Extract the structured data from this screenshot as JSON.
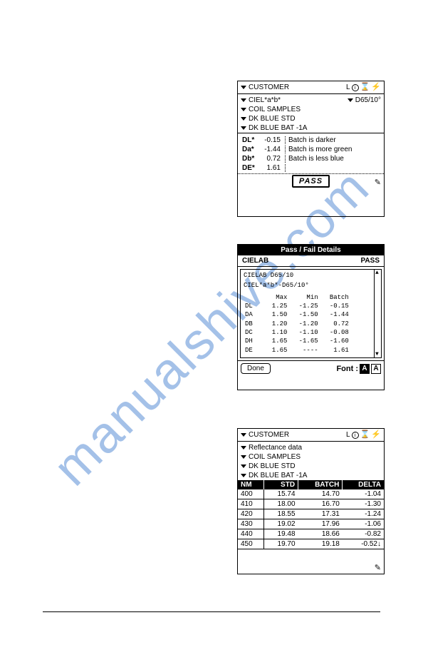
{
  "watermark": "manualshive.com",
  "panel1": {
    "title_label": "CUSTOMER",
    "status_L": "L",
    "status_info": "i",
    "illum_label": "D65/10°",
    "rows": [
      "CIEL*a*b*",
      "COIL SAMPLES",
      "DK BLUE STD",
      "DK BLUE BAT -1A"
    ],
    "cielab": [
      {
        "label": "DL*",
        "value": "-0.15",
        "desc": "Batch is darker"
      },
      {
        "label": "Da*",
        "value": "-1.44",
        "desc": "Batch is more green"
      },
      {
        "label": "Db*",
        "value": "0.72",
        "desc": "Batch is less blue"
      },
      {
        "label": "DE*",
        "value": "1.61",
        "desc": ""
      }
    ],
    "pass_label": "PASS"
  },
  "panel2": {
    "header": "Pass / Fail Details",
    "sub_left": "CIELAB",
    "sub_right": "PASS",
    "line1": "CIELAB D65/10",
    "line2": "CIEL*a*b*-D65/10°",
    "cols": [
      "",
      "Max",
      "Min",
      "Batch"
    ],
    "rows": [
      [
        "DL",
        "1.25",
        "-1.25",
        "-0.15"
      ],
      [
        "DA",
        "1.50",
        "-1.50",
        "-1.44"
      ],
      [
        "DB",
        "1.20",
        "-1.20",
        "0.72"
      ],
      [
        "DC",
        "1.10",
        "-1.10",
        "-0.08"
      ],
      [
        "DH",
        "1.65",
        "-1.65",
        "-1.60"
      ],
      [
        "DE",
        "1.65",
        "----",
        "1.61"
      ]
    ],
    "done_label": "Done",
    "font_label": "Font :"
  },
  "panel3": {
    "title_label": "CUSTOMER",
    "status_L": "L",
    "status_info": "i",
    "rows": [
      "Reflectance data",
      "COIL SAMPLES",
      "DK BLUE STD",
      "DK BLUE BAT -1A"
    ],
    "columns": [
      "NM",
      "STD",
      "BATCH",
      "DELTA"
    ],
    "data": [
      [
        "400",
        "15.74",
        "14.70",
        "-1.04"
      ],
      [
        "410",
        "18.00",
        "16.70",
        "-1.30"
      ],
      [
        "420",
        "18.55",
        "17.31",
        "-1.24"
      ],
      [
        "430",
        "19.02",
        "17.96",
        "-1.06"
      ],
      [
        "440",
        "19.48",
        "18.66",
        "-0.82"
      ],
      [
        "450",
        "19.70",
        "19.18",
        "-0.52"
      ]
    ],
    "down_arrow": "↓"
  }
}
